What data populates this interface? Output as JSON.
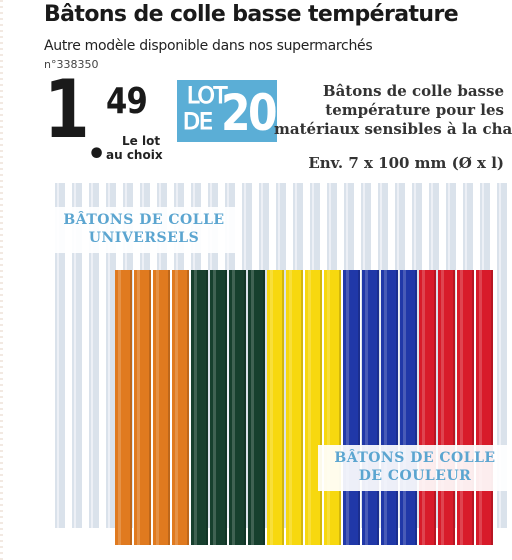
{
  "product": {
    "title": "Bâtons de colle basse température",
    "subtitle": "Autre modèle disponible dans nos supermarchés",
    "reference": "n°338350"
  },
  "price": {
    "euros": "1",
    "cents": "49",
    "unit_line1": "Le lot",
    "unit_line2": "au choix"
  },
  "lot_badge": {
    "word": "LOT",
    "de": "DE",
    "count": "20",
    "color": "#5baed6"
  },
  "description": {
    "line1": "Bâtons de colle basse",
    "line2": "température pour les",
    "line3": "matériaux sensibles à la cha",
    "dimensions": "Env. 7 x 100 mm (Ø x l)"
  },
  "labels": {
    "universal_line1": "BÂTONS DE COLLE",
    "universal_line2": "UNIVERSELS",
    "colour_line1": "BÂTONS DE COLLE",
    "colour_line2": "DE COULEUR",
    "label_color": "#5ba5d0"
  },
  "sticks": {
    "clear_color": "#d4dde8",
    "colored": [
      {
        "color": "orange",
        "hex": "#e07a1f",
        "count": 4
      },
      {
        "color": "dark-green",
        "hex": "#17402e",
        "count": 4
      },
      {
        "color": "yellow",
        "hex": "#f7d80f",
        "count": 4
      },
      {
        "color": "blue",
        "hex": "#2038a8",
        "count": 4
      },
      {
        "color": "red",
        "hex": "#d81b2a",
        "count": 4
      }
    ]
  }
}
